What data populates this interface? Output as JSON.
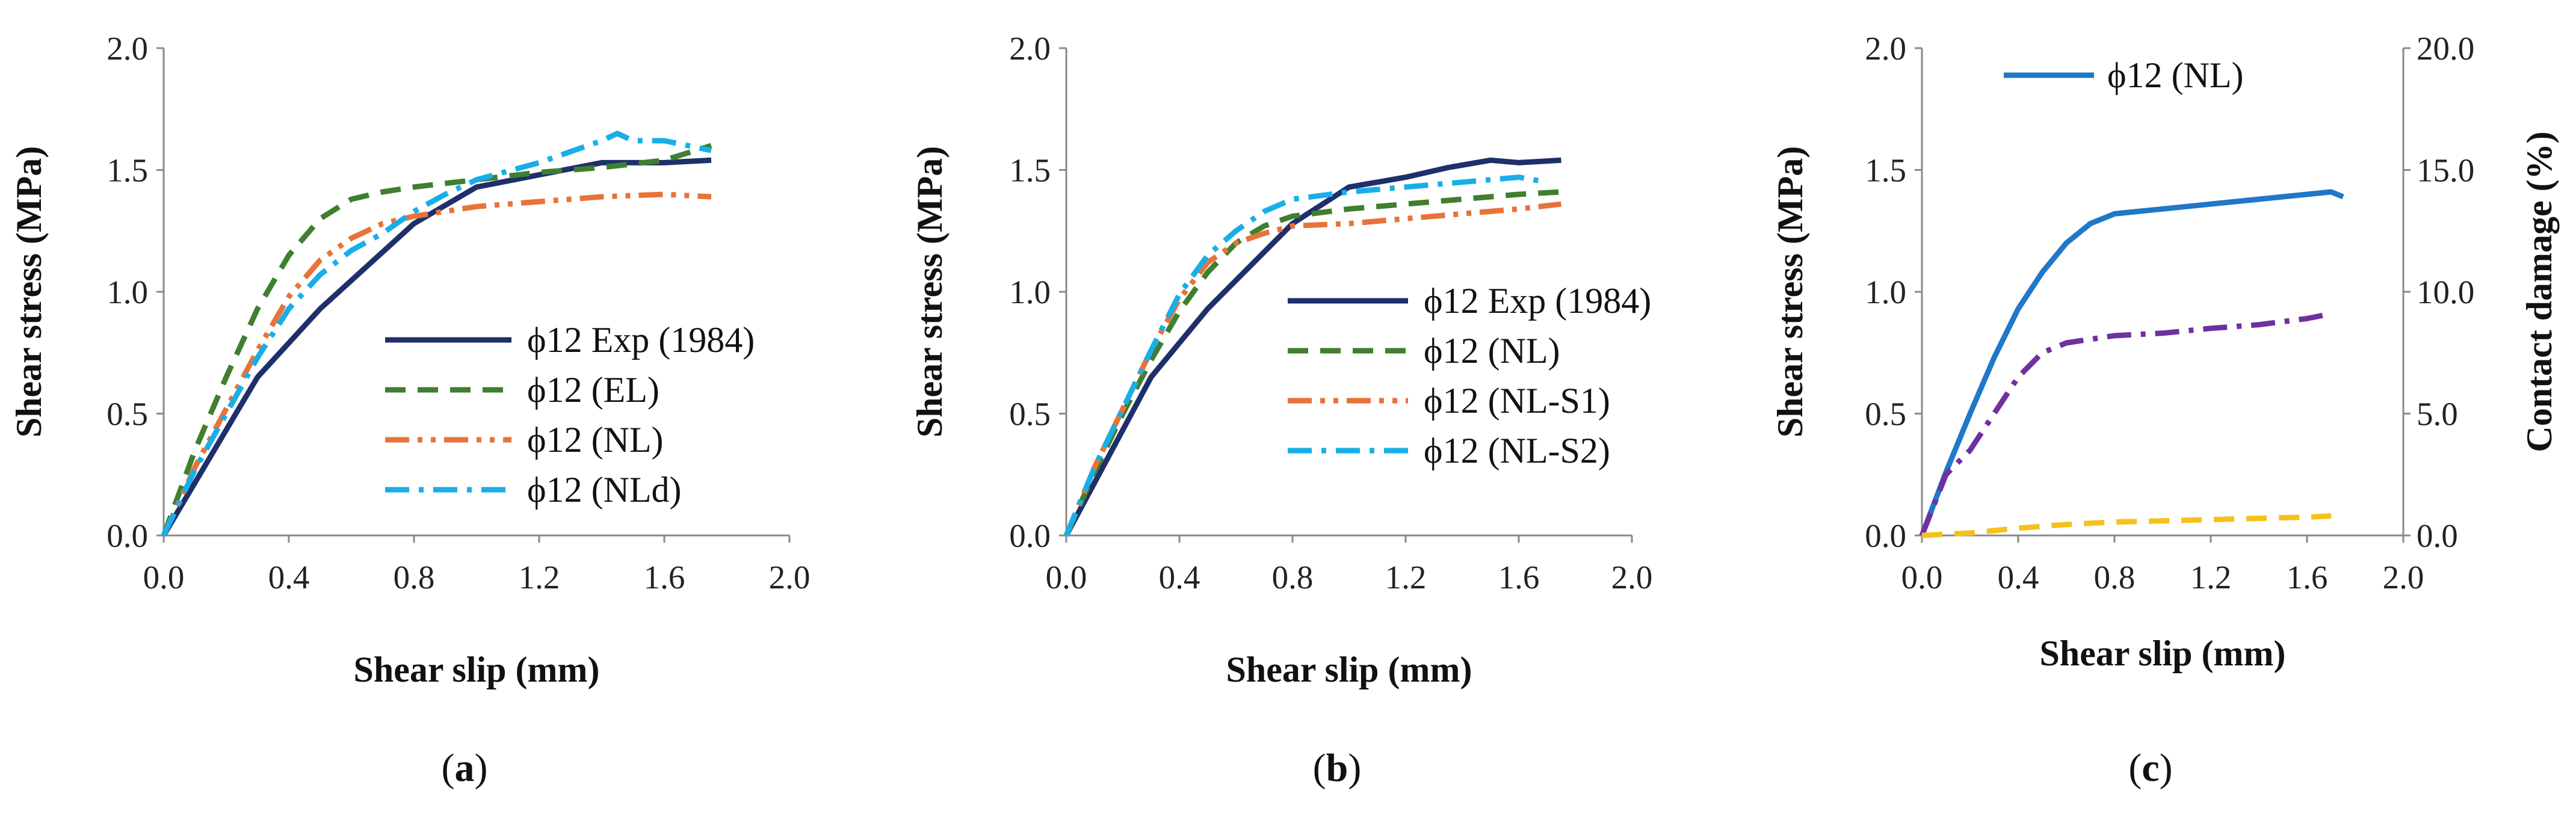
{
  "figure": {
    "description_free": true
  },
  "chart_data": [
    {
      "panel": "a",
      "type": "line",
      "caption": {
        "open": "(",
        "letter": "a",
        "close": ")"
      },
      "xlabel": "Shear slip (mm)",
      "ylabel": "Shear stress (MPa)",
      "xlim": [
        0.0,
        2.0
      ],
      "ylim": [
        0.0,
        2.0
      ],
      "xticks": [
        "0.0",
        "0.4",
        "0.8",
        "1.2",
        "1.6",
        "2.0"
      ],
      "yticks": [
        "0.0",
        "0.5",
        "1.0",
        "1.5",
        "2.0"
      ],
      "legend": "lower-right",
      "series": [
        {
          "name": "ϕ12 Exp (1984)",
          "color": "#1f2f6b",
          "dash": "solid",
          "x": [
            0,
            0.3,
            0.5,
            0.8,
            1.0,
            1.2,
            1.4,
            1.6,
            1.75
          ],
          "y": [
            0,
            0.65,
            0.93,
            1.28,
            1.43,
            1.48,
            1.53,
            1.53,
            1.54
          ]
        },
        {
          "name": "ϕ12 (EL)",
          "color": "#3f7f2f",
          "dash": "dash",
          "x": [
            0,
            0.1,
            0.2,
            0.3,
            0.4,
            0.5,
            0.6,
            0.7,
            0.8,
            1.0,
            1.2,
            1.4,
            1.6,
            1.75
          ],
          "y": [
            0,
            0.35,
            0.65,
            0.93,
            1.15,
            1.3,
            1.38,
            1.41,
            1.43,
            1.46,
            1.49,
            1.51,
            1.54,
            1.6
          ]
        },
        {
          "name": "ϕ12 (NL)",
          "color": "#e8733a",
          "dash": "dashdotdot",
          "x": [
            0,
            0.1,
            0.2,
            0.3,
            0.4,
            0.5,
            0.6,
            0.7,
            0.8,
            1.0,
            1.2,
            1.4,
            1.6,
            1.75
          ],
          "y": [
            0,
            0.28,
            0.52,
            0.76,
            0.98,
            1.13,
            1.22,
            1.28,
            1.31,
            1.35,
            1.37,
            1.39,
            1.4,
            1.39
          ]
        },
        {
          "name": "ϕ12 (NLd)",
          "color": "#1aaee8",
          "dash": "dashdot",
          "x": [
            0,
            0.1,
            0.2,
            0.3,
            0.4,
            0.5,
            0.6,
            0.7,
            0.8,
            0.9,
            1.0,
            1.2,
            1.4,
            1.45,
            1.5,
            1.6,
            1.75
          ],
          "y": [
            0,
            0.27,
            0.5,
            0.73,
            0.93,
            1.07,
            1.17,
            1.24,
            1.33,
            1.4,
            1.46,
            1.53,
            1.62,
            1.65,
            1.62,
            1.62,
            1.58
          ]
        }
      ]
    },
    {
      "panel": "b",
      "type": "line",
      "caption": {
        "open": "(",
        "letter": "b",
        "close": ")"
      },
      "xlabel": "Shear slip (mm)",
      "ylabel": "Shear stress (MPa)",
      "xlim": [
        0.0,
        2.0
      ],
      "ylim": [
        0.0,
        2.0
      ],
      "xticks": [
        "0.0",
        "0.4",
        "0.8",
        "1.2",
        "1.6",
        "2.0"
      ],
      "yticks": [
        "0.0",
        "0.5",
        "1.0",
        "1.5",
        "2.0"
      ],
      "legend": "lower-right",
      "series": [
        {
          "name": "ϕ12 Exp (1984)",
          "color": "#1f2f6b",
          "dash": "solid",
          "x": [
            0,
            0.3,
            0.5,
            0.8,
            1.0,
            1.2,
            1.35,
            1.5,
            1.6,
            1.75
          ],
          "y": [
            0,
            0.65,
            0.93,
            1.28,
            1.43,
            1.47,
            1.51,
            1.54,
            1.53,
            1.54
          ]
        },
        {
          "name": "ϕ12 (NL)",
          "color": "#3f7f2f",
          "dash": "dash",
          "x": [
            0,
            0.1,
            0.2,
            0.3,
            0.4,
            0.5,
            0.6,
            0.7,
            0.8,
            1.0,
            1.2,
            1.4,
            1.6,
            1.75
          ],
          "y": [
            0,
            0.26,
            0.5,
            0.72,
            0.92,
            1.08,
            1.2,
            1.27,
            1.31,
            1.34,
            1.36,
            1.38,
            1.4,
            1.41
          ]
        },
        {
          "name": "ϕ12 (NL-S1)",
          "color": "#e8733a",
          "dash": "dashdotdot",
          "x": [
            0,
            0.1,
            0.2,
            0.3,
            0.4,
            0.5,
            0.6,
            0.7,
            0.8,
            1.0,
            1.2,
            1.4,
            1.6,
            1.75
          ],
          "y": [
            0,
            0.28,
            0.52,
            0.76,
            0.97,
            1.12,
            1.2,
            1.24,
            1.27,
            1.28,
            1.3,
            1.32,
            1.34,
            1.36
          ]
        },
        {
          "name": "ϕ12 (NL-S2)",
          "color": "#1aaee8",
          "dash": "dashdot",
          "x": [
            0,
            0.1,
            0.2,
            0.3,
            0.4,
            0.5,
            0.6,
            0.7,
            0.8,
            1.0,
            1.2,
            1.4,
            1.6,
            1.7
          ],
          "y": [
            0,
            0.28,
            0.52,
            0.76,
            0.99,
            1.15,
            1.25,
            1.33,
            1.38,
            1.41,
            1.43,
            1.45,
            1.47,
            1.45
          ]
        }
      ]
    },
    {
      "panel": "c",
      "type": "line",
      "caption": {
        "open": "(",
        "letter": "c",
        "close": ")"
      },
      "xlabel": "Shear slip (mm)",
      "ylabel": "Shear stress (MPa)",
      "y2label": "Contact damage (%)",
      "xlim": [
        0.0,
        2.0
      ],
      "ylim": [
        0.0,
        2.0
      ],
      "y2lim": [
        0.0,
        20.0
      ],
      "xticks": [
        "0.0",
        "0.4",
        "0.8",
        "1.2",
        "1.6",
        "2.0"
      ],
      "yticks": [
        "0.0",
        "0.5",
        "1.0",
        "1.5",
        "2.0"
      ],
      "y2ticks": [
        "0.0",
        "5.0",
        "10.0",
        "15.0",
        "20.0"
      ],
      "legend": "top-left",
      "series": [
        {
          "name": "ϕ12 (NL)",
          "color": "#1f78c8",
          "dash": "solid",
          "axis": "left",
          "in_legend": true,
          "x": [
            0,
            0.1,
            0.2,
            0.3,
            0.4,
            0.5,
            0.6,
            0.7,
            0.8,
            1.0,
            1.2,
            1.4,
            1.6,
            1.7,
            1.75
          ],
          "y": [
            0,
            0.26,
            0.5,
            0.73,
            0.93,
            1.08,
            1.2,
            1.28,
            1.32,
            1.34,
            1.36,
            1.38,
            1.4,
            1.41,
            1.39
          ]
        },
        {
          "name": "",
          "color": "#7030a0",
          "dash": "dashdot",
          "axis": "right",
          "in_legend": false,
          "x": [
            0,
            0.1,
            0.2,
            0.3,
            0.4,
            0.5,
            0.6,
            0.8,
            1.0,
            1.2,
            1.4,
            1.6,
            1.7
          ],
          "y": [
            0,
            2.5,
            3.5,
            5.0,
            6.5,
            7.5,
            7.9,
            8.2,
            8.3,
            8.5,
            8.65,
            8.9,
            9.1
          ]
        },
        {
          "name": "",
          "color": "#f5c21b",
          "dash": "dash",
          "axis": "right",
          "in_legend": false,
          "x": [
            0,
            0.2,
            0.4,
            0.6,
            0.8,
            1.0,
            1.2,
            1.4,
            1.6,
            1.7
          ],
          "y": [
            0,
            0.1,
            0.3,
            0.45,
            0.55,
            0.6,
            0.65,
            0.7,
            0.75,
            0.8
          ]
        }
      ]
    }
  ]
}
